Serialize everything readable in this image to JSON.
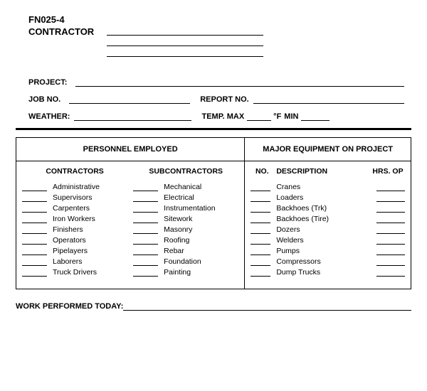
{
  "form_id": "FN025-4",
  "labels": {
    "contractor": "CONTRACTOR",
    "project": "PROJECT:",
    "job_no": "JOB NO.",
    "report_no": "REPORT NO.",
    "weather": "WEATHER:",
    "temp_max": "TEMP. MAX",
    "degree": "°F",
    "min": "MIN",
    "work_performed": "WORK PERFORMED TODAY:"
  },
  "personnel": {
    "header": "PERSONNEL EMPLOYED",
    "contractors_header": "CONTRACTORS",
    "subcontractors_header": "SUBCONTRACTORS",
    "contractors": [
      "Administrative",
      "Supervisors",
      "Carpenters",
      "Iron Workers",
      "Finishers",
      "Operators",
      "Pipelayers",
      "Laborers",
      "Truck Drivers"
    ],
    "subcontractors": [
      "Mechanical",
      "Electrical",
      "Instrumentation",
      "Sitework",
      "Masonry",
      "Roofing",
      "Rebar",
      "Foundation",
      "Painting"
    ]
  },
  "equipment": {
    "header": "MAJOR EQUIPMENT ON PROJECT",
    "col_no": "NO.",
    "col_desc": "DESCRIPTION",
    "col_hrs": "HRS. OP",
    "items": [
      "Cranes",
      "Loaders",
      "Backhoes (Trk)",
      "Backhoes (Tire)",
      "Dozers",
      "Welders",
      "Pumps",
      "Compressors",
      "Dump Trucks"
    ]
  }
}
